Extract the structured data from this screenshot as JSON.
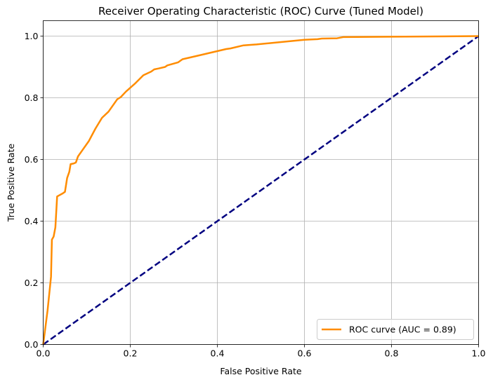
{
  "chart_data": {
    "type": "line",
    "title": "Receiver Operating Characteristic (ROC) Curve (Tuned Model)",
    "xlabel": "False Positive Rate",
    "ylabel": "True Positive Rate",
    "xlim": [
      0.0,
      1.0
    ],
    "ylim": [
      0.0,
      1.05
    ],
    "x_ticks": [
      "0.0",
      "0.2",
      "0.4",
      "0.6",
      "0.8",
      "1.0"
    ],
    "y_ticks": [
      "0.0",
      "0.2",
      "0.4",
      "0.6",
      "0.8",
      "1.0"
    ],
    "grid": true,
    "legend_position": "lower-right",
    "series": [
      {
        "name": "ROC curve (AUC = 0.89)",
        "color": "#ff8c00",
        "style": "solid",
        "points": [
          [
            0.0,
            0.0
          ],
          [
            0.01,
            0.11
          ],
          [
            0.018,
            0.22
          ],
          [
            0.02,
            0.34
          ],
          [
            0.024,
            0.35
          ],
          [
            0.028,
            0.38
          ],
          [
            0.032,
            0.48
          ],
          [
            0.045,
            0.49
          ],
          [
            0.05,
            0.495
          ],
          [
            0.055,
            0.54
          ],
          [
            0.06,
            0.56
          ],
          [
            0.063,
            0.585
          ],
          [
            0.07,
            0.587
          ],
          [
            0.075,
            0.59
          ],
          [
            0.08,
            0.61
          ],
          [
            0.09,
            0.63
          ],
          [
            0.105,
            0.66
          ],
          [
            0.12,
            0.7
          ],
          [
            0.135,
            0.735
          ],
          [
            0.15,
            0.755
          ],
          [
            0.17,
            0.795
          ],
          [
            0.178,
            0.802
          ],
          [
            0.19,
            0.82
          ],
          [
            0.21,
            0.845
          ],
          [
            0.23,
            0.873
          ],
          [
            0.248,
            0.885
          ],
          [
            0.255,
            0.892
          ],
          [
            0.265,
            0.895
          ],
          [
            0.28,
            0.9
          ],
          [
            0.285,
            0.905
          ],
          [
            0.31,
            0.915
          ],
          [
            0.32,
            0.925
          ],
          [
            0.36,
            0.938
          ],
          [
            0.42,
            0.958
          ],
          [
            0.43,
            0.96
          ],
          [
            0.46,
            0.97
          ],
          [
            0.49,
            0.973
          ],
          [
            0.6,
            0.988
          ],
          [
            0.63,
            0.99
          ],
          [
            0.64,
            0.992
          ],
          [
            0.675,
            0.993
          ],
          [
            0.69,
            0.997
          ],
          [
            0.8,
            0.998
          ],
          [
            1.0,
            1.0
          ]
        ]
      },
      {
        "name": "",
        "color": "#000080",
        "style": "dashed",
        "points": [
          [
            0.0,
            0.0
          ],
          [
            1.0,
            1.0
          ]
        ]
      }
    ]
  }
}
